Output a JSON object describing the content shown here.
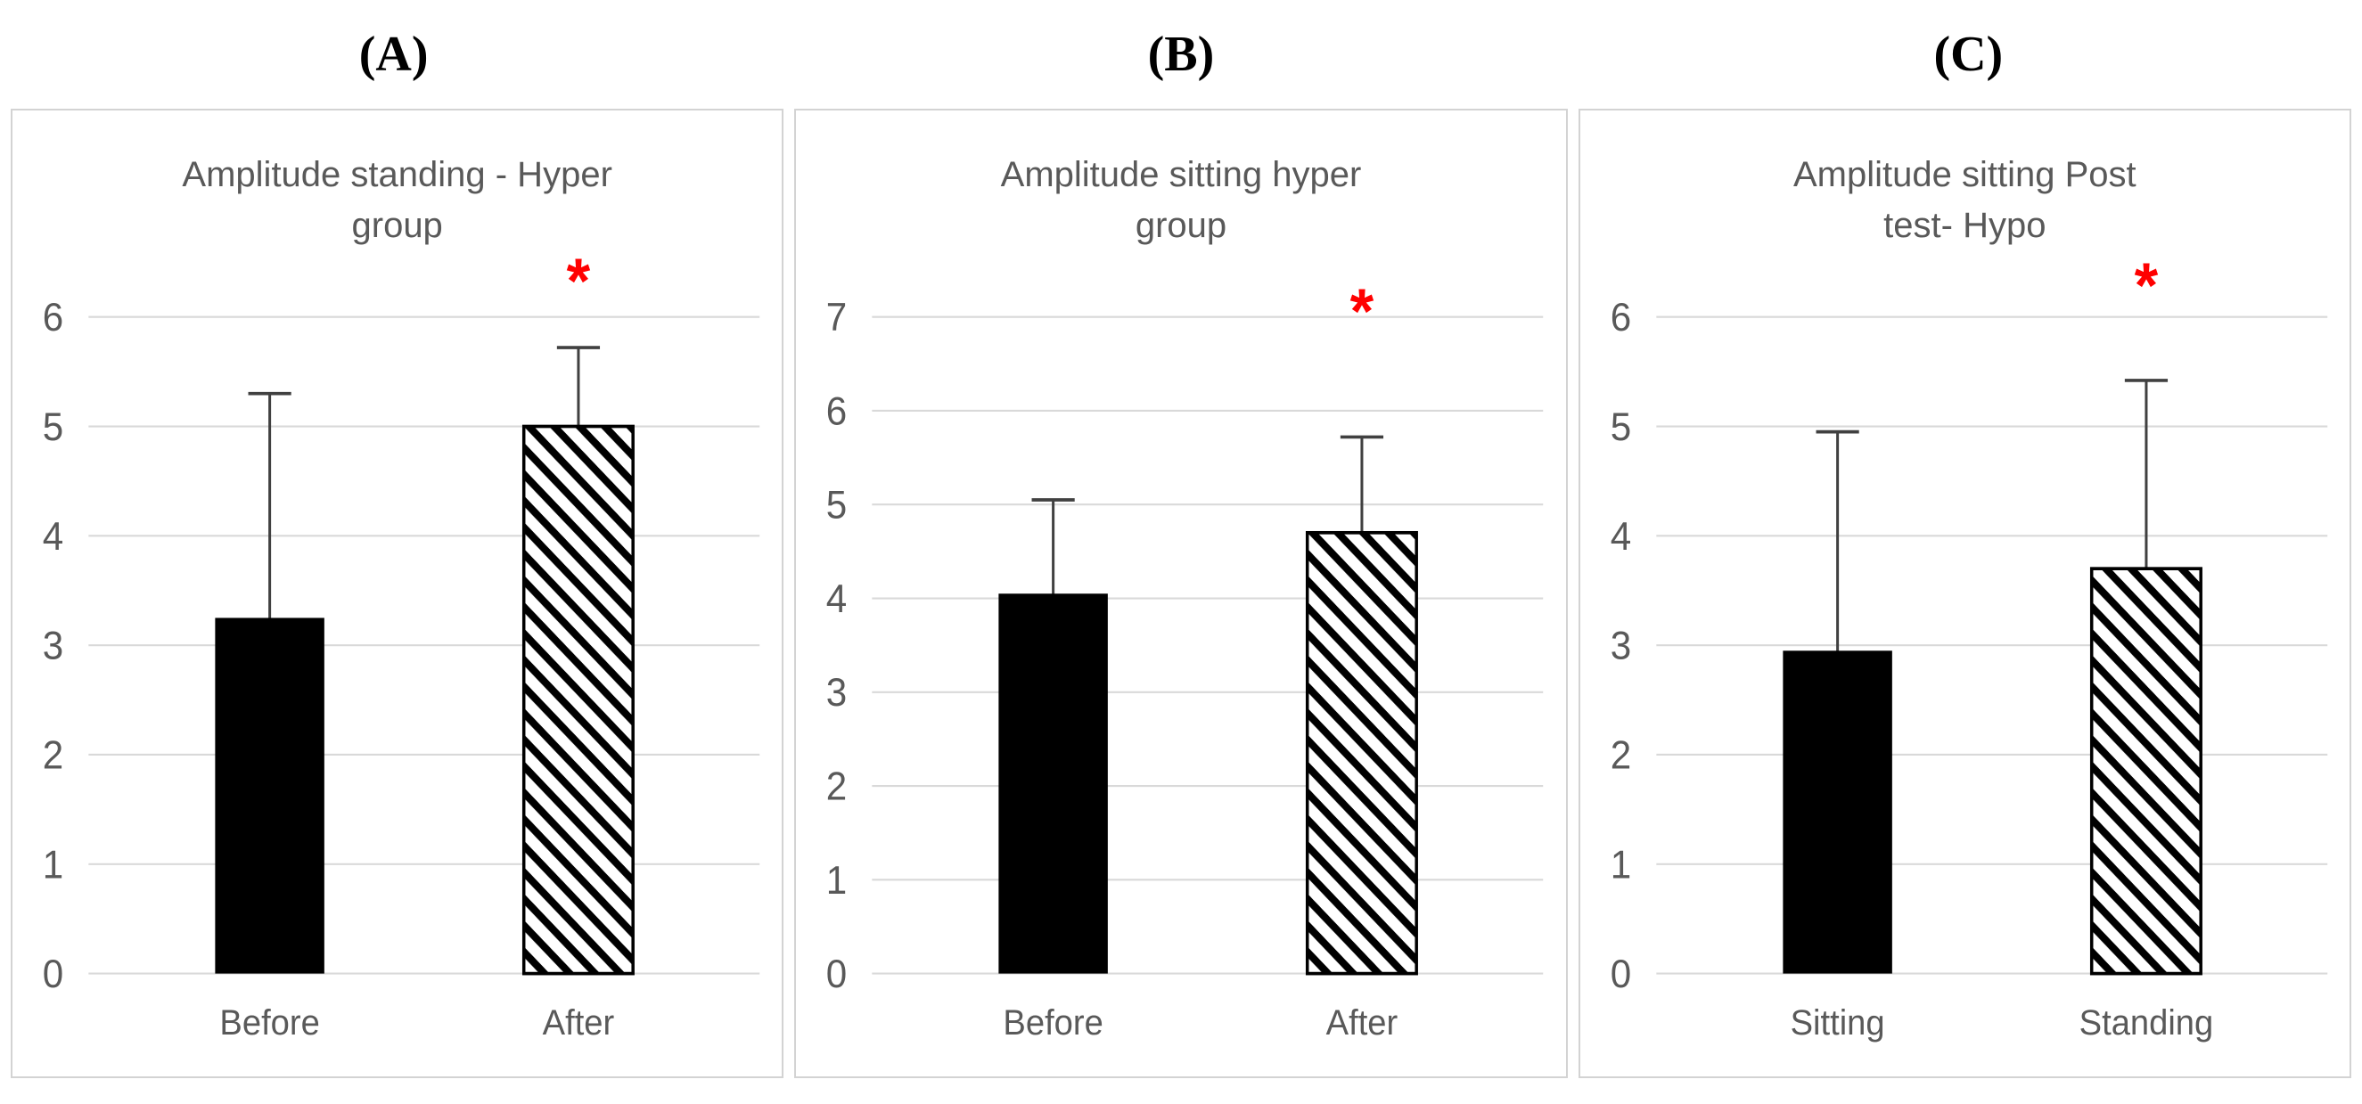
{
  "figure": {
    "panel_labels": [
      "(A)",
      "(B)",
      "(C)"
    ]
  },
  "colors": {
    "bar_solid": "#000000",
    "hatch_stripe": "#000000",
    "hatch_background": "#ffffff",
    "grid": "#d9d9d9",
    "text": "#595959",
    "error_bar": "#404040",
    "significance": "#ff0000",
    "panel_border": "#d3d3d3"
  },
  "chart_data": [
    {
      "type": "bar",
      "panel_label": "(A)",
      "title_lines": [
        "Amplitude standing - Hyper",
        "group"
      ],
      "title": "Amplitude standing - Hyper group",
      "categories": [
        "Before",
        "After"
      ],
      "values": [
        3.25,
        5.0
      ],
      "error_top": [
        5.3,
        5.72
      ],
      "bar_styles": [
        "solid-black",
        "diagonal-hatch"
      ],
      "yticks": [
        0,
        1,
        2,
        3,
        4,
        5,
        6
      ],
      "ylim": [
        0,
        6.6
      ],
      "grid": true,
      "legend": "none",
      "significance": {
        "symbol": "*",
        "category_index": 1,
        "y": 6.32
      }
    },
    {
      "type": "bar",
      "panel_label": "(B)",
      "title_lines": [
        "Amplitude sitting hyper",
        "group"
      ],
      "title": "Amplitude sitting hyper group",
      "categories": [
        "Before",
        "After"
      ],
      "values": [
        4.05,
        4.7
      ],
      "error_top": [
        5.05,
        5.72
      ],
      "bar_styles": [
        "solid-black",
        "diagonal-hatch"
      ],
      "yticks": [
        0,
        1,
        2,
        3,
        4,
        5,
        6,
        7
      ],
      "ylim": [
        0,
        7.5
      ],
      "grid": true,
      "legend": "none",
      "significance": {
        "symbol": "*",
        "category_index": 1,
        "y": 7.05
      }
    },
    {
      "type": "bar",
      "panel_label": "(C)",
      "title_lines": [
        "Amplitude sitting Post",
        "test- Hypo"
      ],
      "title": "Amplitude sitting Post test- Hypo",
      "categories": [
        "Sitting",
        "Standing"
      ],
      "values": [
        2.95,
        3.7
      ],
      "error_top": [
        4.95,
        5.42
      ],
      "bar_styles": [
        "solid-black",
        "diagonal-hatch"
      ],
      "yticks": [
        0,
        1,
        2,
        3,
        4,
        5,
        6
      ],
      "ylim": [
        0,
        6.6
      ],
      "grid": true,
      "legend": "none",
      "significance": {
        "symbol": "*",
        "category_index": 1,
        "y": 6.28
      }
    }
  ]
}
